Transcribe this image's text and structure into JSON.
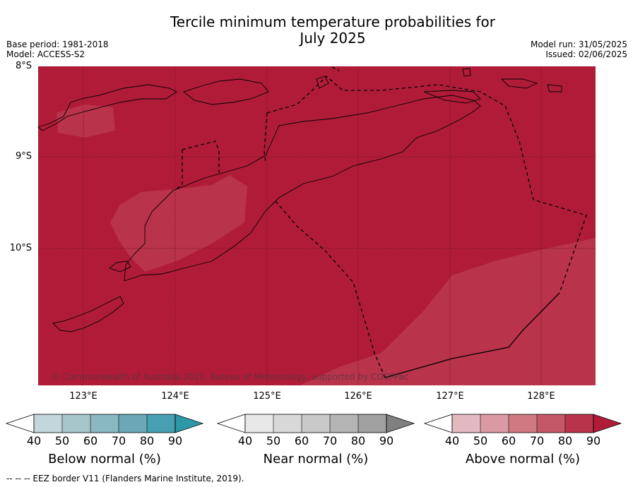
{
  "title_line1": "Tercile minimum temperature probabilities for",
  "title_line2": "July 2025",
  "base_period": "Base period: 1981-2018",
  "model": "Model: ACCESS-S2",
  "model_run": "Model run: 31/05/2025",
  "issued": "Issued: 02/06/2025",
  "lat_labels": [
    "8°S",
    "9°S",
    "10°S"
  ],
  "lon_labels": [
    "123°E",
    "124°E",
    "125°E",
    "126°E",
    "127°E",
    "128°E"
  ],
  "copyright": "© Commonwealth of Australia 2025, Bureau of Meteorology, supported by COSPPac",
  "colorbars": [
    {
      "label": "Below normal (%)",
      "ticks": [
        "40",
        "50",
        "60",
        "70",
        "80",
        "90"
      ],
      "colors": [
        "#ffffff",
        "#c2d6dc",
        "#a7c6cc",
        "#8ab8c1",
        "#6aa8b5",
        "#47a0b2",
        "#2e97a8"
      ]
    },
    {
      "label": "Near normal (%)",
      "ticks": [
        "40",
        "50",
        "60",
        "70",
        "80",
        "90"
      ],
      "colors": [
        "#ffffff",
        "#e8e8e8",
        "#d8d8d8",
        "#c8c8c8",
        "#b4b4b4",
        "#a0a0a0",
        "#808080"
      ]
    },
    {
      "label": "Above normal (%)",
      "ticks": [
        "40",
        "50",
        "60",
        "70",
        "80",
        "90"
      ],
      "colors": [
        "#ffffff",
        "#e3b9c0",
        "#db9aa3",
        "#cf7a83",
        "#c45868",
        "#b9334b",
        "#b01c38"
      ]
    }
  ],
  "footer": "--  --  -- EEZ border V11 (Flanders Marine Institute, 2019).",
  "map_colors": {
    "above_90": "#b01c38",
    "above_80": "#b9334b"
  }
}
